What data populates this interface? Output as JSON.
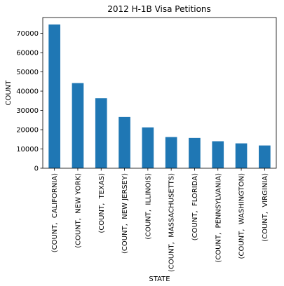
{
  "chart_data": {
    "type": "bar",
    "title": "2012 H-1B Visa Petitions",
    "xlabel": "STATE",
    "ylabel": "COUNT",
    "categories": [
      "(COUNT,  CALIFORNIA)",
      "(COUNT,  NEW YORK)",
      "(COUNT,  TEXAS)",
      "(COUNT,  NEW JERSEY)",
      "(COUNT,  ILLINOIS)",
      "(COUNT,  MASSACHUSETTS)",
      "(COUNT,  FLORIDA)",
      "(COUNT,  PENNSYLVANIA)",
      "(COUNT,  WASHINGTON)",
      "(COUNT,  VIRGINIA)"
    ],
    "values": [
      74600,
      44200,
      36300,
      26600,
      21200,
      16200,
      15700,
      14000,
      12900,
      11800
    ],
    "ylim": [
      0,
      78200
    ],
    "yticks": [
      0,
      10000,
      20000,
      30000,
      40000,
      50000,
      60000,
      70000
    ],
    "bar_color": "#1f77b4",
    "grid": false,
    "legend": "none"
  }
}
